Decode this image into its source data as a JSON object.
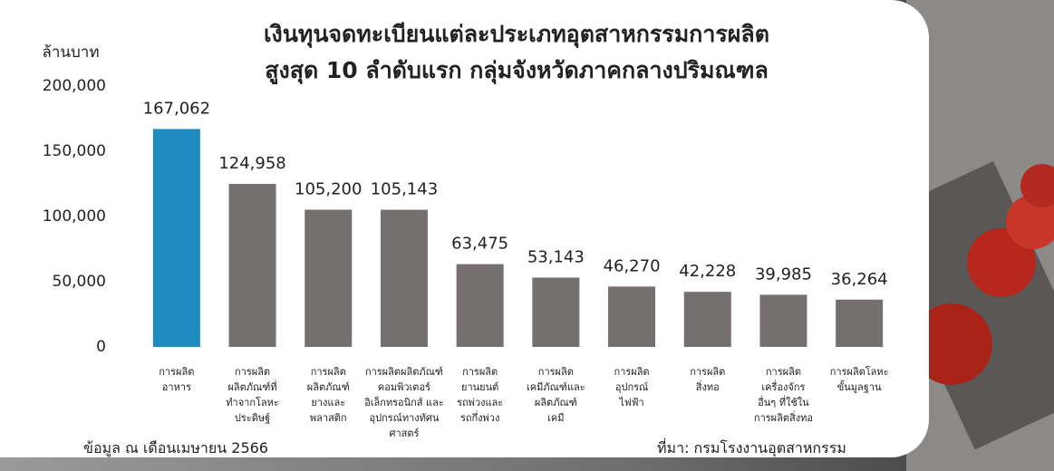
{
  "chart_data": {
    "type": "bar",
    "title": "เงินทุนจดทะเบียนแต่ละประเภทอุตสาหกรรมการผลิต\nสูงสุด 10 ลำดับแรก กลุ่มจังหวัดภาคกลางปริมณฑล",
    "y_label": "ล้านบาท",
    "categories": [
      "การผลิต\nอาหาร",
      "การผลิต\nผลิตภัณฑ์ที่\nทำจากโลหะ\nประดิษฐ์",
      "การผลิต\nผลิตภัณฑ์\nยางและ\nพลาสติก",
      "การผลิตผลิตภัณฑ์\nคอมพิวเตอร์\nอิเล็กทรอนิกส์ และ\nอุปกรณ์ทางทัศน\nศาสตร์",
      "การผลิต\nยานยนต์\nรถพ่วงและ\nรถกึ่งพ่วง",
      "การผลิต\nเคมีภัณฑ์และ\nผลิตภัณฑ์\nเคมี",
      "การผลิต\nอุปกรณ์\nไฟฟ้า",
      "การผลิต\nสิ่งทอ",
      "การผลิต\nเครื่องจักร\nอื่นๆ ที่ใช้ใน\nการผลิตสิ่งทอ",
      "การผลิตโลหะ\nขั้นมูลฐาน"
    ],
    "values": [
      167062,
      124958,
      105200,
      105143,
      63475,
      53143,
      46270,
      42228,
      39985,
      36264
    ],
    "value_labels": [
      "167,062",
      "124,958",
      "105,200",
      "105,143",
      "63,475",
      "53,143",
      "46,270",
      "42,228",
      "39,985",
      "36,264"
    ],
    "colors": [
      "#1f8bc0",
      "#757070",
      "#757070",
      "#757070",
      "#757070",
      "#757070",
      "#757070",
      "#757070",
      "#757070",
      "#757070"
    ],
    "ylim": [
      0,
      200000
    ],
    "yticks": [
      0,
      {
        "value": 50000,
        "label": "50,000"
      },
      {
        "value": 100000,
        "label": "100,000"
      },
      {
        "value": 150000,
        "label": "150,000"
      },
      {
        "value": 200000,
        "label": "200,000"
      }
    ],
    "grid": false,
    "note": "ข้อมูล ณ เดือนเมษายน 2566",
    "source": "ที่มา: กรมโรงงานอุตสาหกรรม"
  }
}
